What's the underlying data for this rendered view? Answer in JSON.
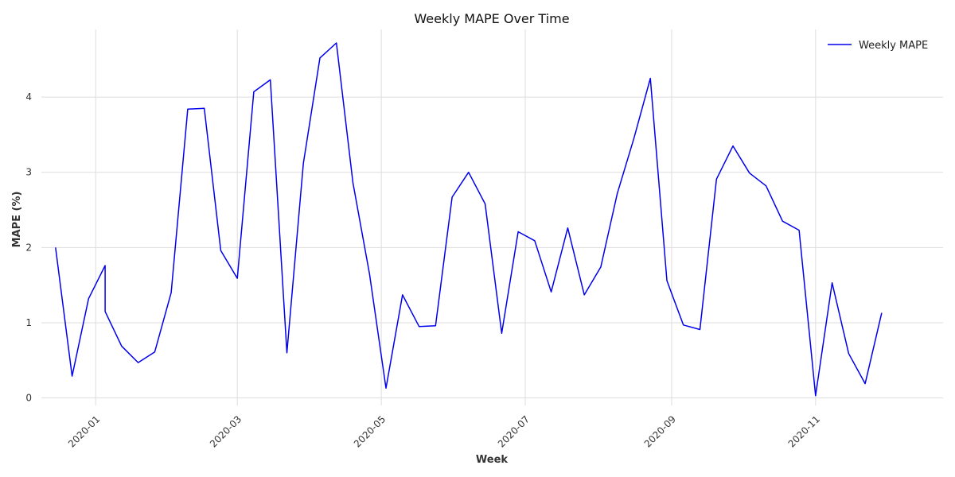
{
  "chart_data": {
    "type": "line",
    "title": "Weekly MAPE Over Time",
    "xlabel": "Week",
    "ylabel": "MAPE (%)",
    "ylim": [
      -0.1,
      4.9
    ],
    "xlim": [
      "2019-12-09",
      "2020-12-25"
    ],
    "grid": true,
    "legend_position": "top-right",
    "x_ticks": [
      "2020-01",
      "2020-03",
      "2020-05",
      "2020-07",
      "2020-09",
      "2020-11"
    ],
    "y_ticks": [
      "0",
      "1",
      "2",
      "3",
      "4"
    ],
    "series": [
      {
        "name": "Weekly MAPE",
        "color": "#0000ee",
        "x": [
          "2019-12-15",
          "2019-12-22",
          "2019-12-29",
          "2020-01-05",
          "2020-01-05",
          "2020-01-12",
          "2020-01-19",
          "2020-01-26",
          "2020-02-02",
          "2020-02-09",
          "2020-02-16",
          "2020-02-23",
          "2020-03-01",
          "2020-03-08",
          "2020-03-15",
          "2020-03-22",
          "2020-03-29",
          "2020-04-05",
          "2020-04-12",
          "2020-04-19",
          "2020-04-26",
          "2020-05-03",
          "2020-05-10",
          "2020-05-17",
          "2020-05-24",
          "2020-05-31",
          "2020-06-07",
          "2020-06-14",
          "2020-06-21",
          "2020-06-28",
          "2020-07-05",
          "2020-07-12",
          "2020-07-19",
          "2020-07-26",
          "2020-08-02",
          "2020-08-09",
          "2020-08-16",
          "2020-08-23",
          "2020-08-30",
          "2020-09-06",
          "2020-09-13",
          "2020-09-20",
          "2020-09-27",
          "2020-10-04",
          "2020-10-11",
          "2020-10-18",
          "2020-10-25",
          "2020-11-01",
          "2020-11-08",
          "2020-11-15",
          "2020-11-22",
          "2020-11-29"
        ],
        "values": [
          2.0,
          0.29,
          1.32,
          1.76,
          1.15,
          0.69,
          0.47,
          0.61,
          1.4,
          3.84,
          3.85,
          1.96,
          1.59,
          4.07,
          4.23,
          0.6,
          3.12,
          4.52,
          4.72,
          2.86,
          1.65,
          0.13,
          1.37,
          0.95,
          0.96,
          2.67,
          3.0,
          2.58,
          0.86,
          2.21,
          2.09,
          1.41,
          2.26,
          1.37,
          1.74,
          2.72,
          3.45,
          4.25,
          1.56,
          0.97,
          0.91,
          2.91,
          3.35,
          2.99,
          2.82,
          2.35,
          2.23,
          0.03,
          1.53,
          0.59,
          0.19,
          1.13
        ]
      }
    ]
  }
}
